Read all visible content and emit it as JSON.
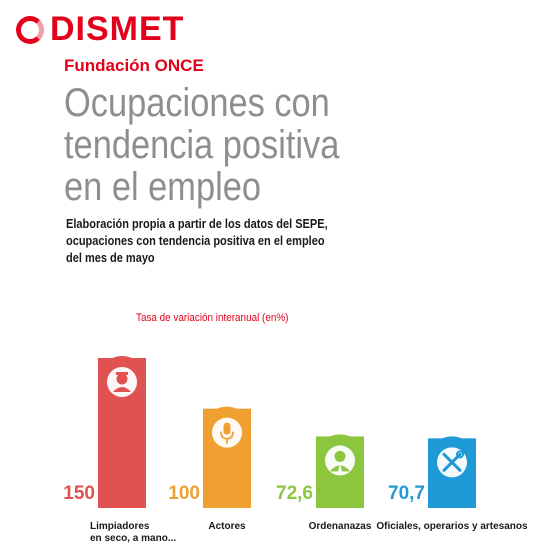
{
  "brand": {
    "logo_text": "DISMET",
    "logo_sub": "Fundación ONCE",
    "accent": "#e2001a"
  },
  "title_lines": [
    "Ocupaciones con",
    "tendencia  positiva",
    "en el empleo"
  ],
  "subtitle_lines": [
    "Elaboración propia a partir de los datos del SEPE,",
    "ocupaciones con tendencia positiva en el empleo",
    "del mes de mayo"
  ],
  "chart_data": {
    "type": "bar",
    "title": "Tasa de variación interanual (en%)",
    "categories": [
      "Limpiadores en seco, a mano...",
      "Actores",
      "Ordenanazas",
      "Oficiales, operarios y artesanos"
    ],
    "category_label_lines": [
      [
        "Limpiadores",
        "en seco, a mano..."
      ],
      [
        "Actores"
      ],
      [
        "Ordenanazas"
      ],
      [
        "Oficiales, operarios y artesanos"
      ]
    ],
    "values": [
      150,
      100,
      72.6,
      70.7
    ],
    "value_labels": [
      "150",
      "100",
      "72,6",
      "70,7"
    ],
    "colors": [
      "#e05252",
      "#f0a030",
      "#8cc63f",
      "#1f9ad6"
    ],
    "icons": [
      "worker-icon",
      "microphone-icon",
      "clerk-icon",
      "tools-icon"
    ],
    "ylim": [
      0,
      150
    ],
    "grid": false,
    "legend": "none"
  }
}
